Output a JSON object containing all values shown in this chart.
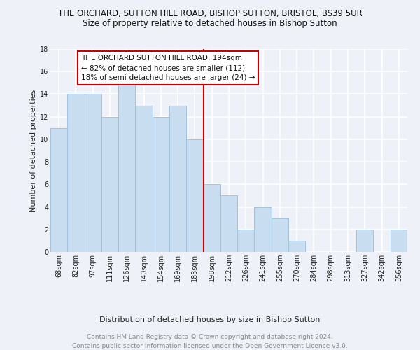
{
  "title": "THE ORCHARD, SUTTON HILL ROAD, BISHOP SUTTON, BRISTOL, BS39 5UR",
  "subtitle": "Size of property relative to detached houses in Bishop Sutton",
  "xlabel": "Distribution of detached houses by size in Bishop Sutton",
  "ylabel": "Number of detached properties",
  "categories": [
    "68sqm",
    "82sqm",
    "97sqm",
    "111sqm",
    "126sqm",
    "140sqm",
    "154sqm",
    "169sqm",
    "183sqm",
    "198sqm",
    "212sqm",
    "226sqm",
    "241sqm",
    "255sqm",
    "270sqm",
    "284sqm",
    "298sqm",
    "313sqm",
    "327sqm",
    "342sqm",
    "356sqm"
  ],
  "values": [
    11,
    14,
    14,
    12,
    15,
    13,
    12,
    13,
    10,
    6,
    5,
    2,
    4,
    3,
    1,
    0,
    0,
    0,
    2,
    0,
    2
  ],
  "bar_color": "#c8ddf0",
  "bar_edge_color": "#a0c4e0",
  "reference_line_index": 9,
  "reference_line_color": "#cc0000",
  "annotation_line1": "THE ORCHARD SUTTON HILL ROAD: 194sqm",
  "annotation_line2": "← 82% of detached houses are smaller (112)",
  "annotation_line3": "18% of semi-detached houses are larger (24) →",
  "annotation_box_color": "#ffffff",
  "annotation_box_edge_color": "#cc0000",
  "ylim": [
    0,
    18
  ],
  "yticks": [
    0,
    2,
    4,
    6,
    8,
    10,
    12,
    14,
    16,
    18
  ],
  "footnote_line1": "Contains HM Land Registry data © Crown copyright and database right 2024.",
  "footnote_line2": "Contains public sector information licensed under the Open Government Licence v3.0.",
  "background_color": "#eef2f8",
  "plot_background_color": "#eef2f8",
  "grid_color": "#ffffff",
  "title_fontsize": 8.5,
  "subtitle_fontsize": 8.5,
  "axis_label_fontsize": 8,
  "tick_fontsize": 7,
  "footnote_fontsize": 6.5,
  "annotation_fontsize": 7.5
}
